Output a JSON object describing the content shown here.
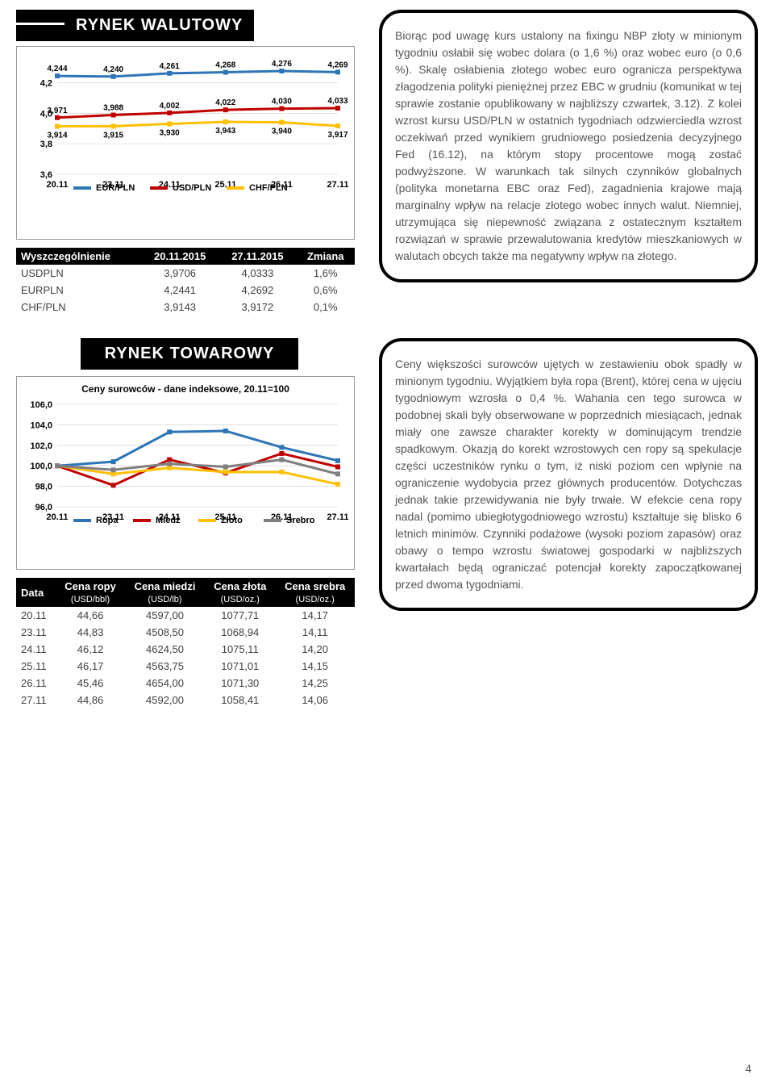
{
  "page_number": "4",
  "currency": {
    "heading": "RYNEK WALUTOWY",
    "chart": {
      "xlabels": [
        "20.11",
        "23.11",
        "24.11",
        "25.11",
        "26.11",
        "27.11"
      ],
      "ylabels": [
        "3,6",
        "3,8",
        "4,0",
        "4,2"
      ],
      "ylim": [
        3.6,
        4.35
      ],
      "series": [
        {
          "name": "EUR/PLN",
          "color": "#2e75b6",
          "values": [
            4.244,
            4.24,
            4.261,
            4.268,
            4.276,
            4.269
          ]
        },
        {
          "name": "USD/PLN",
          "color": "#c00000",
          "values": [
            3.971,
            3.988,
            4.002,
            4.022,
            4.03,
            4.033
          ]
        },
        {
          "name": "CHF/PLN",
          "color": "#ffc000",
          "values": [
            3.914,
            3.915,
            3.93,
            3.943,
            3.94,
            3.917
          ]
        }
      ]
    },
    "table": {
      "headers": [
        "Wyszczególnienie",
        "20.11.2015",
        "27.11.2015",
        "Zmiana"
      ],
      "rows": [
        [
          "USDPLN",
          "3,9706",
          "4,0333",
          "1,6%"
        ],
        [
          "EURPLN",
          "4,2441",
          "4,2692",
          "0,6%"
        ],
        [
          "CHF/PLN",
          "3,9143",
          "3,9172",
          "0,1%"
        ]
      ]
    },
    "text": "Biorąc pod uwagę kurs ustalony na fixingu NBP złoty w minionym tygodniu osłabił się wobec dolara (o 1,6 %) oraz wobec euro (o 0,6 %). Skalę osłabienia złotego wobec euro ogranicza perspektywa złagodzenia polityki pieniężnej przez EBC w grudniu (komunikat w tej sprawie zostanie opublikowany w najbliższy czwartek, 3.12). Z kolei wzrost kursu USD/PLN w ostatnich tygodniach odzwierciedla wzrost oczekiwań przed wynikiem grudniowego posiedzenia decyzyjnego Fed (16.12), na którym stopy procentowe mogą zostać podwyższone. W warunkach tak silnych czynników globalnych (polityka monetarna EBC oraz Fed), zagadnienia krajowe mają marginalny wpływ na relacje złotego wobec innych walut. Niemniej, utrzymująca się niepewność związana z ostatecznym kształtem rozwiązań w sprawie przewalutowania kredytów mieszkaniowych w walutach obcych także ma negatywny wpływ na złotego."
  },
  "commodity": {
    "heading": "RYNEK TOWAROWY",
    "chart": {
      "title": "Ceny surowców - dane indeksowe, 20.11=100",
      "xlabels": [
        "20.11",
        "23.11",
        "24.11",
        "25.11",
        "26.11",
        "27.11"
      ],
      "ylabels": [
        "96,0",
        "98,0",
        "100,0",
        "102,0",
        "104,0",
        "106,0"
      ],
      "ylim": [
        96.0,
        106.0
      ],
      "series": [
        {
          "name": "Ropa",
          "color": "#2e75b6",
          "values": [
            100.0,
            100.4,
            103.3,
            103.4,
            101.8,
            100.5
          ]
        },
        {
          "name": "Miedź",
          "color": "#c00000",
          "values": [
            100.0,
            98.1,
            100.6,
            99.3,
            101.2,
            99.9
          ]
        },
        {
          "name": "Złoto",
          "color": "#ffc000",
          "values": [
            100.0,
            99.2,
            99.8,
            99.4,
            99.4,
            98.2
          ]
        },
        {
          "name": "Srebro",
          "color": "#7f7f7f",
          "values": [
            100.0,
            99.6,
            100.2,
            99.9,
            100.6,
            99.2
          ]
        }
      ]
    },
    "table": {
      "headers": [
        "Data",
        "Cena ropy\n(USD/bbl)",
        "Cena miedzi\n(USD/lb)",
        "Cena złota\n(USD/oz.)",
        "Cena srebra\n(USD/oz.)"
      ],
      "rows": [
        [
          "20.11",
          "44,66",
          "4597,00",
          "1077,71",
          "14,17"
        ],
        [
          "23.11",
          "44,83",
          "4508,50",
          "1068,94",
          "14,11"
        ],
        [
          "24.11",
          "46,12",
          "4624,50",
          "1075,11",
          "14,20"
        ],
        [
          "25.11",
          "46,17",
          "4563,75",
          "1071,01",
          "14,15"
        ],
        [
          "26.11",
          "45,46",
          "4654,00",
          "1071,30",
          "14,25"
        ],
        [
          "27.11",
          "44,86",
          "4592,00",
          "1058,41",
          "14,06"
        ]
      ]
    },
    "text": "Ceny większości surowców ujętych w zestawieniu obok spadły w minionym tygodniu. Wyjątkiem była ropa (Brent), której cena w ujęciu tygodniowym wzrosła o 0,4 %. Wahania cen tego surowca w podobnej skali były obserwowane w poprzednich miesiącach, jednak miały one zawsze charakter korekty w dominującym trendzie spadkowym. Okazją do korekt wzrostowych cen ropy są spekulacje części uczestników rynku o tym, iż niski poziom cen wpłynie na ograniczenie wydobycia przez głównych producentów. Dotychczas jednak takie przewidywania nie były trwałe. W efekcie cena ropy nadal (pomimo ubiegłotygodniowego wzrostu) kształtuje się blisko 6 letnich minimów. Czynniki podażowe (wysoki poziom zapasów) oraz obawy o tempo wzrostu światowej gospodarki w najbliższych kwartałach będą ograniczać potencjał korekty zapoczątkowanej przed dwoma tygodniami."
  }
}
